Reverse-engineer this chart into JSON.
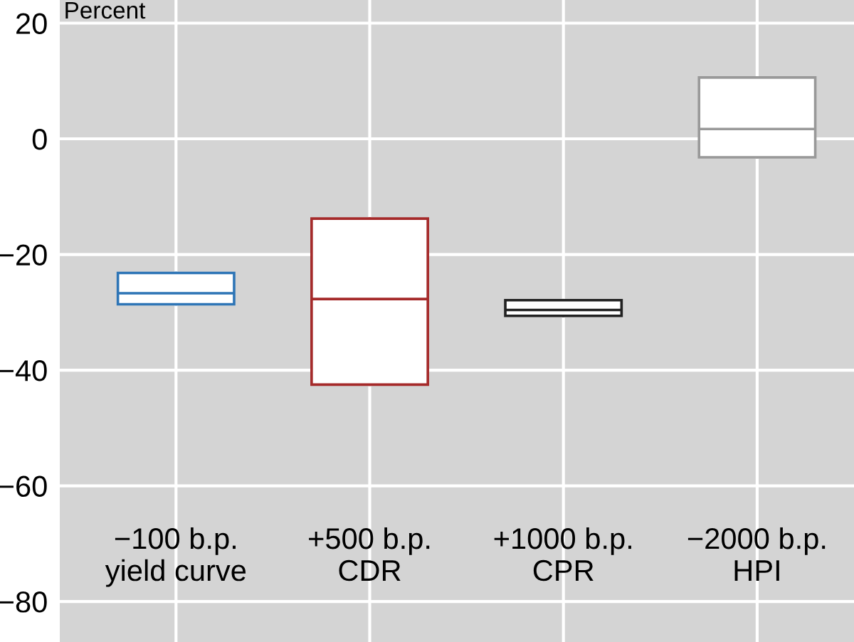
{
  "chart_data": {
    "type": "box",
    "ylabel": "Percent",
    "categories": [
      "−100 b.p.\nyield curve",
      "+500 b.p.\nCDR",
      "+1000 b.p.\nCPR",
      "−2000 b.p.\nHPI"
    ],
    "boxes": [
      {
        "low": -28.6,
        "q1": -28.6,
        "median": -26.7,
        "q3": -23.2,
        "high": -23.2
      },
      {
        "low": -42.5,
        "q1": -42.5,
        "median": -27.7,
        "q3": -13.8,
        "high": -13.8
      },
      {
        "low": -30.6,
        "q1": -30.6,
        "median": -29.6,
        "q3": -27.9,
        "high": -27.9
      },
      {
        "low": -3.2,
        "q1": -3.2,
        "median": 1.7,
        "q3": 10.6,
        "high": 10.6
      }
    ],
    "colors": [
      "#2e75b6",
      "#a52a2a",
      "#222222",
      "#999999"
    ],
    "ylim": [
      -87,
      24
    ],
    "yticks": [
      {
        "value": -80,
        "label": "−80"
      },
      {
        "value": -60,
        "label": "−60"
      },
      {
        "value": -40,
        "label": "−40"
      },
      {
        "value": -20,
        "label": "−20"
      },
      0,
      20
    ],
    "grid": true
  }
}
